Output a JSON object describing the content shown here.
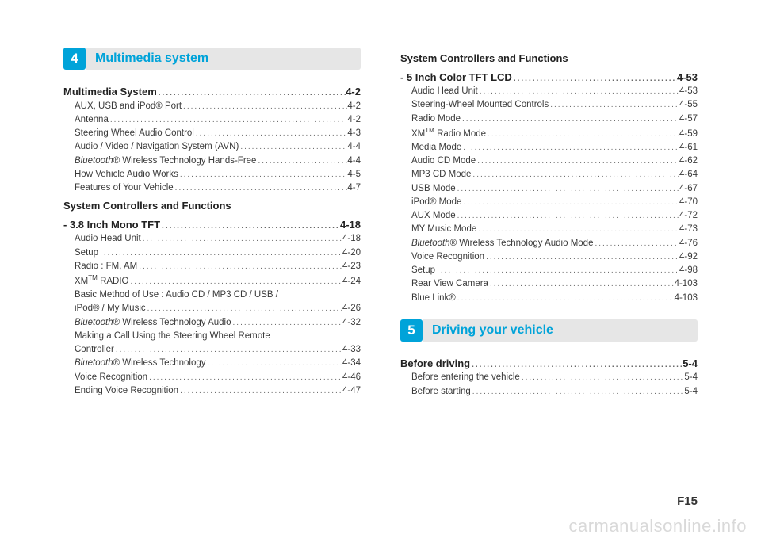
{
  "pageNumber": "F15",
  "watermark": "carmanualsonline.info",
  "colors": {
    "accent": "#00a3d9",
    "header_bg": "#e6e6e6",
    "text": "#3a3a3a"
  },
  "leftColumn": {
    "chapter": {
      "num": "4",
      "title": "Multimedia system"
    },
    "entries": [
      {
        "type": "section",
        "label": "Multimedia System",
        "page": "4-2"
      },
      {
        "type": "sub",
        "label": "AUX, USB and iPod® Port",
        "page": "4-2"
      },
      {
        "type": "sub",
        "label": "Antenna",
        "page": "4-2"
      },
      {
        "type": "sub",
        "label": "Steering Wheel Audio Control",
        "page": "4-3"
      },
      {
        "type": "sub",
        "label": "Audio / Video / Navigation System (AVN)",
        "page": "4-4"
      },
      {
        "type": "sub",
        "label_html": "<span class='italic'>Bluetooth</span>® Wireless Technology Hands-Free",
        "page": "4-4"
      },
      {
        "type": "sub",
        "label": "How Vehicle Audio Works",
        "page": "4-5"
      },
      {
        "type": "sub",
        "label": "Features of Your Vehicle",
        "page": "4-7"
      },
      {
        "type": "section",
        "label": "System Controllers and Functions",
        "no_page": true
      },
      {
        "type": "section",
        "label": "- 3.8 Inch Mono TFT",
        "page": "4-18",
        "continue": true
      },
      {
        "type": "sub",
        "label": "Audio Head Unit",
        "page": "4-18"
      },
      {
        "type": "sub",
        "label": "Setup",
        "page": "4-20"
      },
      {
        "type": "sub",
        "label": "Radio : FM, AM",
        "page": "4-23"
      },
      {
        "type": "sub",
        "label_html": "XM<sup>TM</sup> RADIO",
        "page": "4-24"
      },
      {
        "type": "sub",
        "label": "Basic Method of Use : Audio CD / MP3 CD / USB /",
        "no_page": true
      },
      {
        "type": "sub",
        "label": "iPod® / My Music",
        "page": "4-26"
      },
      {
        "type": "sub",
        "label_html": "<span class='italic'>Bluetooth</span>® Wireless Technology Audio",
        "page": "4-32"
      },
      {
        "type": "sub",
        "label": "Making a Call Using the Steering Wheel Remote",
        "no_page": true
      },
      {
        "type": "sub",
        "label": "Controller",
        "page": "4-33"
      },
      {
        "type": "sub",
        "label_html": "<span class='italic'>Bluetooth</span>® Wireless Technology",
        "page": "4-34"
      },
      {
        "type": "sub",
        "label": "Voice Recognition",
        "page": "4-46"
      },
      {
        "type": "sub",
        "label": "Ending Voice Recognition",
        "page": "4-47"
      }
    ]
  },
  "rightColumn": {
    "topEntries": [
      {
        "type": "section",
        "label": "System Controllers and Functions",
        "no_page": true
      },
      {
        "type": "section",
        "label": "- 5 Inch Color TFT LCD",
        "page": "4-53",
        "continue": true
      },
      {
        "type": "sub",
        "label": "Audio Head Unit",
        "page": "4-53"
      },
      {
        "type": "sub",
        "label": "Steering-Wheel Mounted Controls",
        "page": "4-55"
      },
      {
        "type": "sub",
        "label": "Radio Mode",
        "page": "4-57"
      },
      {
        "type": "sub",
        "label_html": "XM<sup>TM</sup> Radio Mode",
        "page": "4-59"
      },
      {
        "type": "sub",
        "label": "Media Mode",
        "page": "4-61"
      },
      {
        "type": "sub",
        "label": "Audio CD Mode",
        "page": "4-62"
      },
      {
        "type": "sub",
        "label": "MP3 CD Mode",
        "page": "4-64"
      },
      {
        "type": "sub",
        "label": "USB Mode",
        "page": "4-67"
      },
      {
        "type": "sub",
        "label": "iPod® Mode",
        "page": "4-70"
      },
      {
        "type": "sub",
        "label": "AUX Mode",
        "page": "4-72"
      },
      {
        "type": "sub",
        "label": "MY Music Mode",
        "page": "4-73"
      },
      {
        "type": "sub",
        "label_html": "<span class='italic'>Bluetooth</span>® Wireless Technology Audio Mode",
        "page": "4-76"
      },
      {
        "type": "sub",
        "label": "Voice Recognition",
        "page": "4-92"
      },
      {
        "type": "sub",
        "label": "Setup",
        "page": "4-98"
      },
      {
        "type": "sub",
        "label": "Rear View Camera",
        "page": "4-103"
      },
      {
        "type": "sub",
        "label": "Blue Link®",
        "page": "4-103"
      }
    ],
    "chapter": {
      "num": "5",
      "title": "Driving your vehicle"
    },
    "bottomEntries": [
      {
        "type": "section",
        "label": "Before driving",
        "page": "5-4"
      },
      {
        "type": "sub",
        "label": "Before entering the vehicle",
        "page": "5-4"
      },
      {
        "type": "sub",
        "label": "Before starting",
        "page": "5-4"
      }
    ]
  }
}
